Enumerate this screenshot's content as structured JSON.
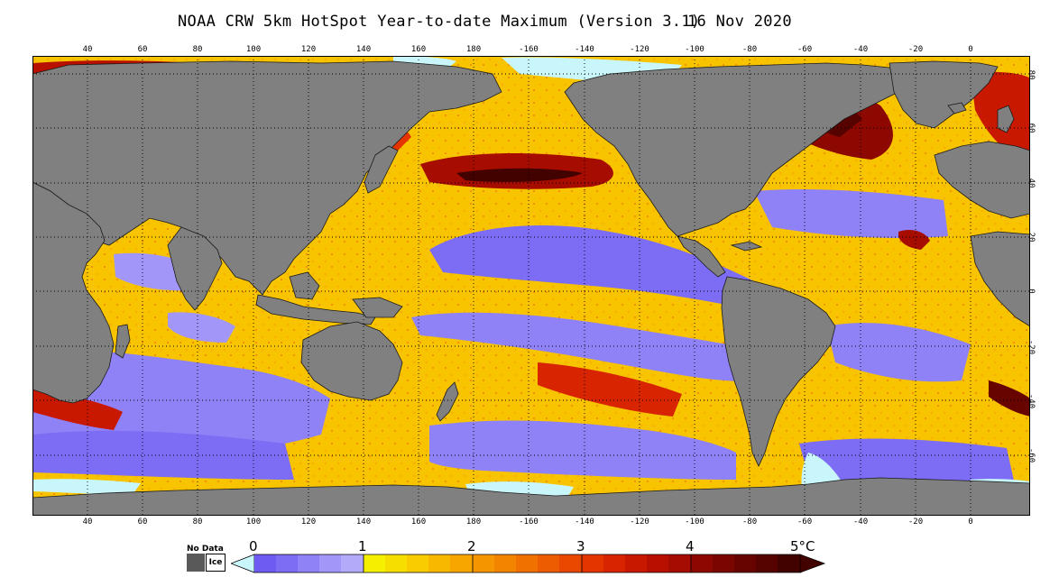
{
  "title": {
    "main": "NOAA CRW 5km HotSpot Year-to-date Maximum (Version 3.1)",
    "date": "16 Nov 2020"
  },
  "axes": {
    "lon_ticks": [
      "40",
      "60",
      "80",
      "100",
      "120",
      "140",
      "160",
      "180",
      "-160",
      "-140",
      "-120",
      "-100",
      "-80",
      "-60",
      "-40",
      "-20",
      "0"
    ],
    "lat_ticks": [
      "80",
      "60",
      "40",
      "20",
      "0",
      "-20",
      "-40",
      "-60"
    ]
  },
  "legend": {
    "no_data_label": "No Data",
    "ice_label": "Ice",
    "scale_labels": [
      "0",
      "1",
      "2",
      "3",
      "4",
      "5°C"
    ],
    "colors": {
      "no_data": "#595959",
      "ice": "#c8f6fa",
      "hotspot_0_1": [
        "#6e5cf2",
        "#7d6df4",
        "#8f81f6",
        "#a297f8",
        "#b3aafa"
      ],
      "hotspot_1_2": [
        "#f4f000",
        "#f6de00",
        "#f8cc00",
        "#f9b800",
        "#f7a600"
      ],
      "hotspot_2_3": [
        "#f59600",
        "#f38400",
        "#f07000",
        "#ed5c00",
        "#ea4800"
      ],
      "hotspot_3_4": [
        "#e43400",
        "#d82400",
        "#c81800",
        "#b81000",
        "#a60c00"
      ],
      "hotspot_4_5": [
        "#8c0800",
        "#7a0600",
        "#680400",
        "#560300",
        "#420200"
      ]
    }
  },
  "map": {
    "land_color": "#808080",
    "grid": "dotted lat/lon graticule every 20 degrees"
  }
}
